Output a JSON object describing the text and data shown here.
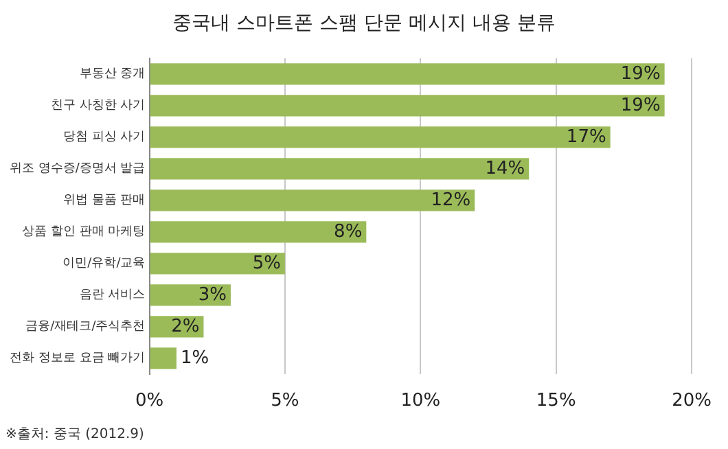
{
  "chart_data": {
    "type": "bar",
    "orientation": "horizontal",
    "title": "중국내 스마트폰 스팸 단문 메시지 내용 분류",
    "categories": [
      "부동산 중개",
      "친구 사칭한 사기",
      "당첨 피싱 사기",
      "위조 영수증/증명서 발급",
      "위법 물품 판매",
      "상품 할인 판매 마케팅",
      "이민/유학/교육",
      "음란 서비스",
      "금융/재테크/주식추천",
      "전화 정보로 요금 빼가기"
    ],
    "values": [
      19,
      19,
      17,
      14,
      12,
      8,
      5,
      3,
      2,
      1
    ],
    "value_labels": [
      "19%",
      "19%",
      "17%",
      "14%",
      "12%",
      "8%",
      "5%",
      "3%",
      "2%",
      "1%"
    ],
    "color": "#9bbb59",
    "xlim": [
      0,
      20
    ],
    "xticks": [
      {
        "value": 0,
        "label": "0%"
      },
      {
        "value": 5,
        "label": "5%"
      },
      {
        "value": 10,
        "label": "10%"
      },
      {
        "value": 15,
        "label": "15%"
      },
      {
        "value": 20,
        "label": "20%"
      }
    ],
    "grid": "x",
    "legend": false,
    "annotations": [
      "※출처: 중국 (2012.9)"
    ]
  }
}
